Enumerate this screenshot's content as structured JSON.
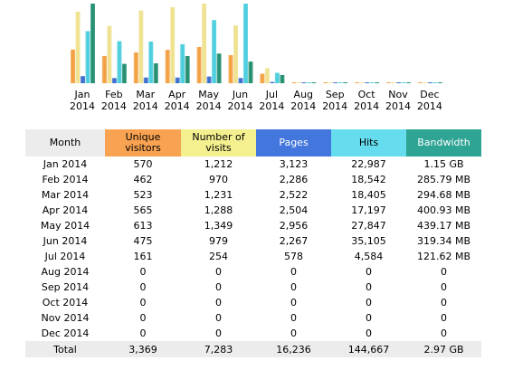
{
  "chart_data": {
    "type": "bar",
    "categories": [
      "Jan 2014",
      "Feb 2014",
      "Mar 2014",
      "Apr 2014",
      "May 2014",
      "Jun 2014",
      "Jul 2014",
      "Aug 2014",
      "Sep 2014",
      "Oct 2014",
      "Nov 2014",
      "Dec 2014"
    ],
    "category_lines": [
      [
        "Jan",
        "2014"
      ],
      [
        "Feb",
        "2014"
      ],
      [
        "Mar",
        "2014"
      ],
      [
        "Apr",
        "2014"
      ],
      [
        "May",
        "2014"
      ],
      [
        "Jun",
        "2014"
      ],
      [
        "Jul",
        "2014"
      ],
      [
        "Aug",
        "2014"
      ],
      [
        "Sep",
        "2014"
      ],
      [
        "Oct",
        "2014"
      ],
      [
        "Nov",
        "2014"
      ],
      [
        "Dec",
        "2014"
      ]
    ],
    "series": [
      {
        "name": "Unique visitors",
        "color": "#f39c3a",
        "values": [
          570,
          462,
          523,
          565,
          613,
          475,
          161,
          0,
          0,
          0,
          0,
          0
        ]
      },
      {
        "name": "Number of visits",
        "color": "#eee08a",
        "values": [
          1212,
          970,
          1231,
          1288,
          1349,
          979,
          254,
          0,
          0,
          0,
          0,
          0
        ]
      },
      {
        "name": "Pages",
        "color": "#3366cc",
        "values": [
          3123,
          2286,
          2522,
          2504,
          2956,
          2267,
          578,
          0,
          0,
          0,
          0,
          0
        ]
      },
      {
        "name": "Hits",
        "color": "#44ccdd",
        "values": [
          22987,
          18542,
          18405,
          17197,
          27847,
          35105,
          4584,
          0,
          0,
          0,
          0,
          0
        ]
      },
      {
        "name": "Bandwidth (MB)",
        "color": "#1a8a6a",
        "values": [
          1177.6,
          285.79,
          294.68,
          400.93,
          439.17,
          319.34,
          121.62,
          0,
          0,
          0,
          0,
          0
        ]
      }
    ],
    "scale_groups": [
      [
        0,
        1
      ],
      [
        2,
        3
      ],
      [
        4
      ]
    ],
    "group_max": [
      1349,
      35105,
      1177.6
    ],
    "legend": "none",
    "grid": false
  },
  "table": {
    "headers": {
      "month": "Month",
      "unique": [
        "Unique",
        "visitors"
      ],
      "visits": [
        "Number of",
        "visits"
      ],
      "pages": "Pages",
      "hits": "Hits",
      "bandwidth": "Bandwidth"
    },
    "rows": [
      {
        "month": "Jan 2014",
        "unique": "570",
        "visits": "1,212",
        "pages": "3,123",
        "hits": "22,987",
        "bandwidth": "1.15 GB"
      },
      {
        "month": "Feb 2014",
        "unique": "462",
        "visits": "970",
        "pages": "2,286",
        "hits": "18,542",
        "bandwidth": "285.79 MB"
      },
      {
        "month": "Mar 2014",
        "unique": "523",
        "visits": "1,231",
        "pages": "2,522",
        "hits": "18,405",
        "bandwidth": "294.68 MB"
      },
      {
        "month": "Apr 2014",
        "unique": "565",
        "visits": "1,288",
        "pages": "2,504",
        "hits": "17,197",
        "bandwidth": "400.93 MB"
      },
      {
        "month": "May 2014",
        "unique": "613",
        "visits": "1,349",
        "pages": "2,956",
        "hits": "27,847",
        "bandwidth": "439.17 MB"
      },
      {
        "month": "Jun 2014",
        "unique": "475",
        "visits": "979",
        "pages": "2,267",
        "hits": "35,105",
        "bandwidth": "319.34 MB"
      },
      {
        "month": "Jul 2014",
        "unique": "161",
        "visits": "254",
        "pages": "578",
        "hits": "4,584",
        "bandwidth": "121.62 MB"
      },
      {
        "month": "Aug 2014",
        "unique": "0",
        "visits": "0",
        "pages": "0",
        "hits": "0",
        "bandwidth": "0"
      },
      {
        "month": "Sep 2014",
        "unique": "0",
        "visits": "0",
        "pages": "0",
        "hits": "0",
        "bandwidth": "0"
      },
      {
        "month": "Oct 2014",
        "unique": "0",
        "visits": "0",
        "pages": "0",
        "hits": "0",
        "bandwidth": "0"
      },
      {
        "month": "Nov 2014",
        "unique": "0",
        "visits": "0",
        "pages": "0",
        "hits": "0",
        "bandwidth": "0"
      },
      {
        "month": "Dec 2014",
        "unique": "0",
        "visits": "0",
        "pages": "0",
        "hits": "0",
        "bandwidth": "0"
      }
    ],
    "total": {
      "month": "Total",
      "unique": "3,369",
      "visits": "7,283",
      "pages": "16,236",
      "hits": "144,667",
      "bandwidth": "2.97 GB"
    }
  }
}
